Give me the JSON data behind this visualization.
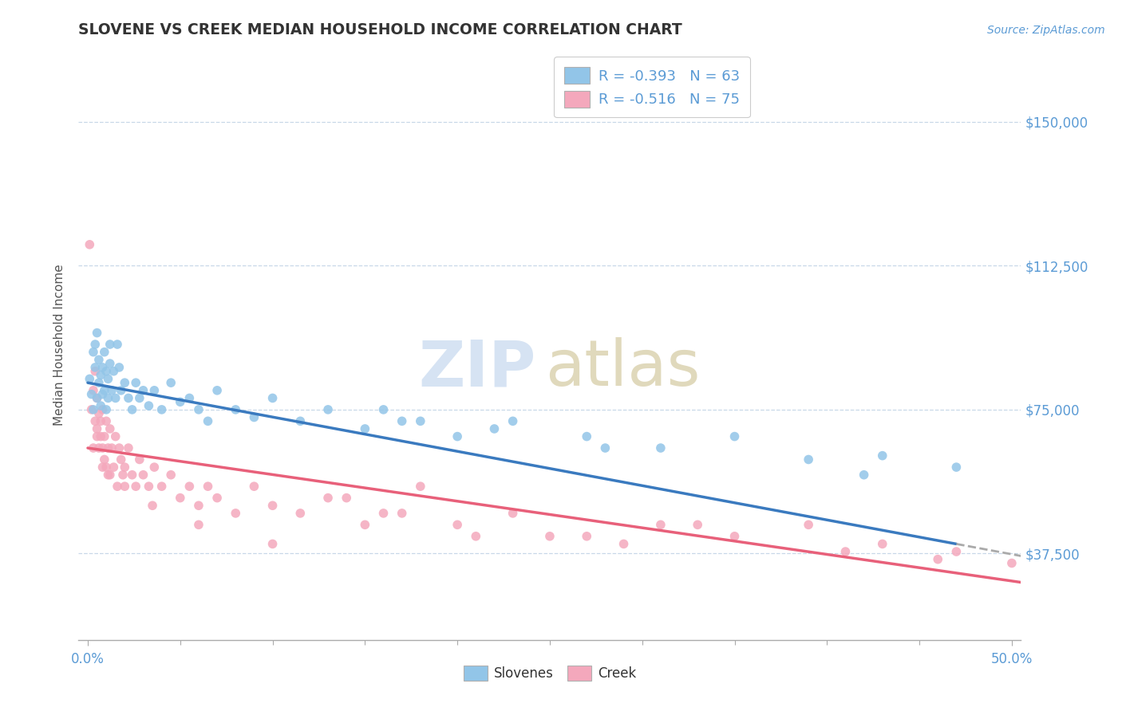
{
  "title": "SLOVENE VS CREEK MEDIAN HOUSEHOLD INCOME CORRELATION CHART",
  "source_text": "Source: ZipAtlas.com",
  "ylabel": "Median Household Income",
  "xlim": [
    -0.005,
    0.505
  ],
  "ylim": [
    15000,
    168750
  ],
  "yticks": [
    37500,
    75000,
    112500,
    150000
  ],
  "ytick_labels": [
    "$37,500",
    "$75,000",
    "$112,500",
    "$150,000"
  ],
  "xtick_left_label": "0.0%",
  "xtick_right_label": "50.0%",
  "legend_label_1": "R = -0.393   N = 63",
  "legend_label_2": "R = -0.516   N = 75",
  "slovene_color": "#92c5e8",
  "creek_color": "#f4a8bc",
  "slovene_line_color": "#3a7abf",
  "creek_line_color": "#e8607a",
  "axis_color": "#5b9bd5",
  "grid_color": "#c8d8e8",
  "watermark_zip_color": "#c5d8ee",
  "watermark_atlas_color": "#d4c9a0",
  "slovene_x": [
    0.001,
    0.002,
    0.003,
    0.003,
    0.004,
    0.004,
    0.005,
    0.005,
    0.006,
    0.006,
    0.007,
    0.007,
    0.008,
    0.008,
    0.009,
    0.009,
    0.01,
    0.01,
    0.011,
    0.011,
    0.012,
    0.012,
    0.013,
    0.014,
    0.015,
    0.016,
    0.017,
    0.018,
    0.02,
    0.022,
    0.024,
    0.026,
    0.028,
    0.03,
    0.033,
    0.036,
    0.04,
    0.045,
    0.05,
    0.055,
    0.06,
    0.065,
    0.07,
    0.08,
    0.09,
    0.1,
    0.115,
    0.13,
    0.15,
    0.17,
    0.2,
    0.23,
    0.27,
    0.31,
    0.35,
    0.39,
    0.43,
    0.47,
    0.22,
    0.18,
    0.16,
    0.28,
    0.42
  ],
  "slovene_y": [
    83000,
    79000,
    90000,
    75000,
    86000,
    92000,
    78000,
    95000,
    82000,
    88000,
    76000,
    84000,
    79000,
    86000,
    80000,
    90000,
    75000,
    85000,
    83000,
    78000,
    92000,
    87000,
    80000,
    85000,
    78000,
    92000,
    86000,
    80000,
    82000,
    78000,
    75000,
    82000,
    78000,
    80000,
    76000,
    80000,
    75000,
    82000,
    77000,
    78000,
    75000,
    72000,
    80000,
    75000,
    73000,
    78000,
    72000,
    75000,
    70000,
    72000,
    68000,
    72000,
    68000,
    65000,
    68000,
    62000,
    63000,
    60000,
    70000,
    72000,
    75000,
    65000,
    58000
  ],
  "creek_x": [
    0.001,
    0.002,
    0.003,
    0.003,
    0.004,
    0.004,
    0.005,
    0.005,
    0.006,
    0.006,
    0.007,
    0.007,
    0.008,
    0.008,
    0.009,
    0.009,
    0.01,
    0.01,
    0.011,
    0.011,
    0.012,
    0.013,
    0.014,
    0.015,
    0.016,
    0.017,
    0.018,
    0.019,
    0.02,
    0.022,
    0.024,
    0.026,
    0.028,
    0.03,
    0.033,
    0.036,
    0.04,
    0.045,
    0.05,
    0.055,
    0.06,
    0.065,
    0.07,
    0.08,
    0.09,
    0.1,
    0.115,
    0.13,
    0.15,
    0.17,
    0.2,
    0.23,
    0.27,
    0.31,
    0.35,
    0.39,
    0.43,
    0.47,
    0.5,
    0.14,
    0.16,
    0.25,
    0.33,
    0.41,
    0.46,
    0.18,
    0.21,
    0.29,
    0.005,
    0.008,
    0.012,
    0.02,
    0.035,
    0.06,
    0.1
  ],
  "creek_y": [
    118000,
    75000,
    65000,
    80000,
    72000,
    85000,
    70000,
    78000,
    65000,
    74000,
    68000,
    72000,
    60000,
    75000,
    62000,
    68000,
    60000,
    72000,
    65000,
    58000,
    70000,
    65000,
    60000,
    68000,
    55000,
    65000,
    62000,
    58000,
    60000,
    65000,
    58000,
    55000,
    62000,
    58000,
    55000,
    60000,
    55000,
    58000,
    52000,
    55000,
    50000,
    55000,
    52000,
    48000,
    55000,
    50000,
    48000,
    52000,
    45000,
    48000,
    45000,
    48000,
    42000,
    45000,
    42000,
    45000,
    40000,
    38000,
    35000,
    52000,
    48000,
    42000,
    45000,
    38000,
    36000,
    55000,
    42000,
    40000,
    68000,
    65000,
    58000,
    55000,
    50000,
    45000,
    40000
  ]
}
